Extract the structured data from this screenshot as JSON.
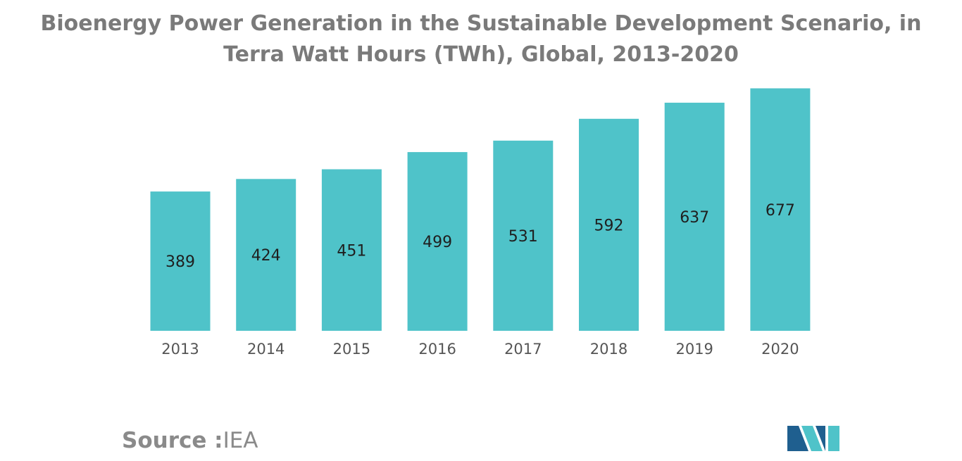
{
  "chart_data": {
    "type": "bar",
    "title": "Bioenergy Power Generation in the Sustainable Development Scenario, in Terra Watt Hours (TWh), Global, 2013-2020",
    "categories": [
      "2013",
      "2014",
      "2015",
      "2016",
      "2017",
      "2018",
      "2019",
      "2020"
    ],
    "values": [
      389,
      424,
      451,
      499,
      531,
      592,
      637,
      677
    ],
    "xlabel": "",
    "ylabel": "",
    "ylim": [
      0,
      680
    ],
    "grid": false,
    "legend": false,
    "data_labels": "inside-center"
  },
  "colors": {
    "bar": "#4fc3c9",
    "title": "#7a7a7a",
    "tick": "#555555",
    "label": "#1f1f1f",
    "source": "#8a8a8a",
    "logo_dark": "#1f5f8f",
    "logo_light": "#4fc3c9"
  },
  "source": {
    "label": "Source :",
    "value": "IEA"
  }
}
